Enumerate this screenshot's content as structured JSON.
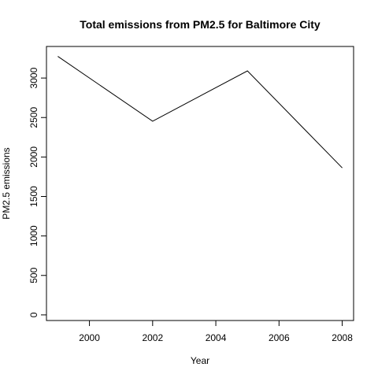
{
  "chart_data": {
    "type": "line",
    "title": "Total emissions from PM2.5 for Baltimore City",
    "xlabel": "Year",
    "ylabel": "PM2.5 emissions",
    "x": [
      1999,
      2002,
      2005,
      2008
    ],
    "series": [
      {
        "values": [
          3274,
          2453,
          3091,
          1862
        ]
      }
    ],
    "xlim": [
      1998.64,
      2008.36
    ],
    "ylim": [
      -71,
      3400
    ],
    "xticks": [
      2000,
      2002,
      2004,
      2006,
      2008
    ],
    "xtick_labels": [
      "2000",
      "2002",
      "2004",
      "2006",
      "2008"
    ],
    "yticks": [
      0,
      500,
      1000,
      1500,
      2000,
      2500,
      3000
    ],
    "ytick_labels": [
      "0",
      "500",
      "1000",
      "1500",
      "2000",
      "2500",
      "3000"
    ],
    "grid": false,
    "line_color": "#000000"
  }
}
